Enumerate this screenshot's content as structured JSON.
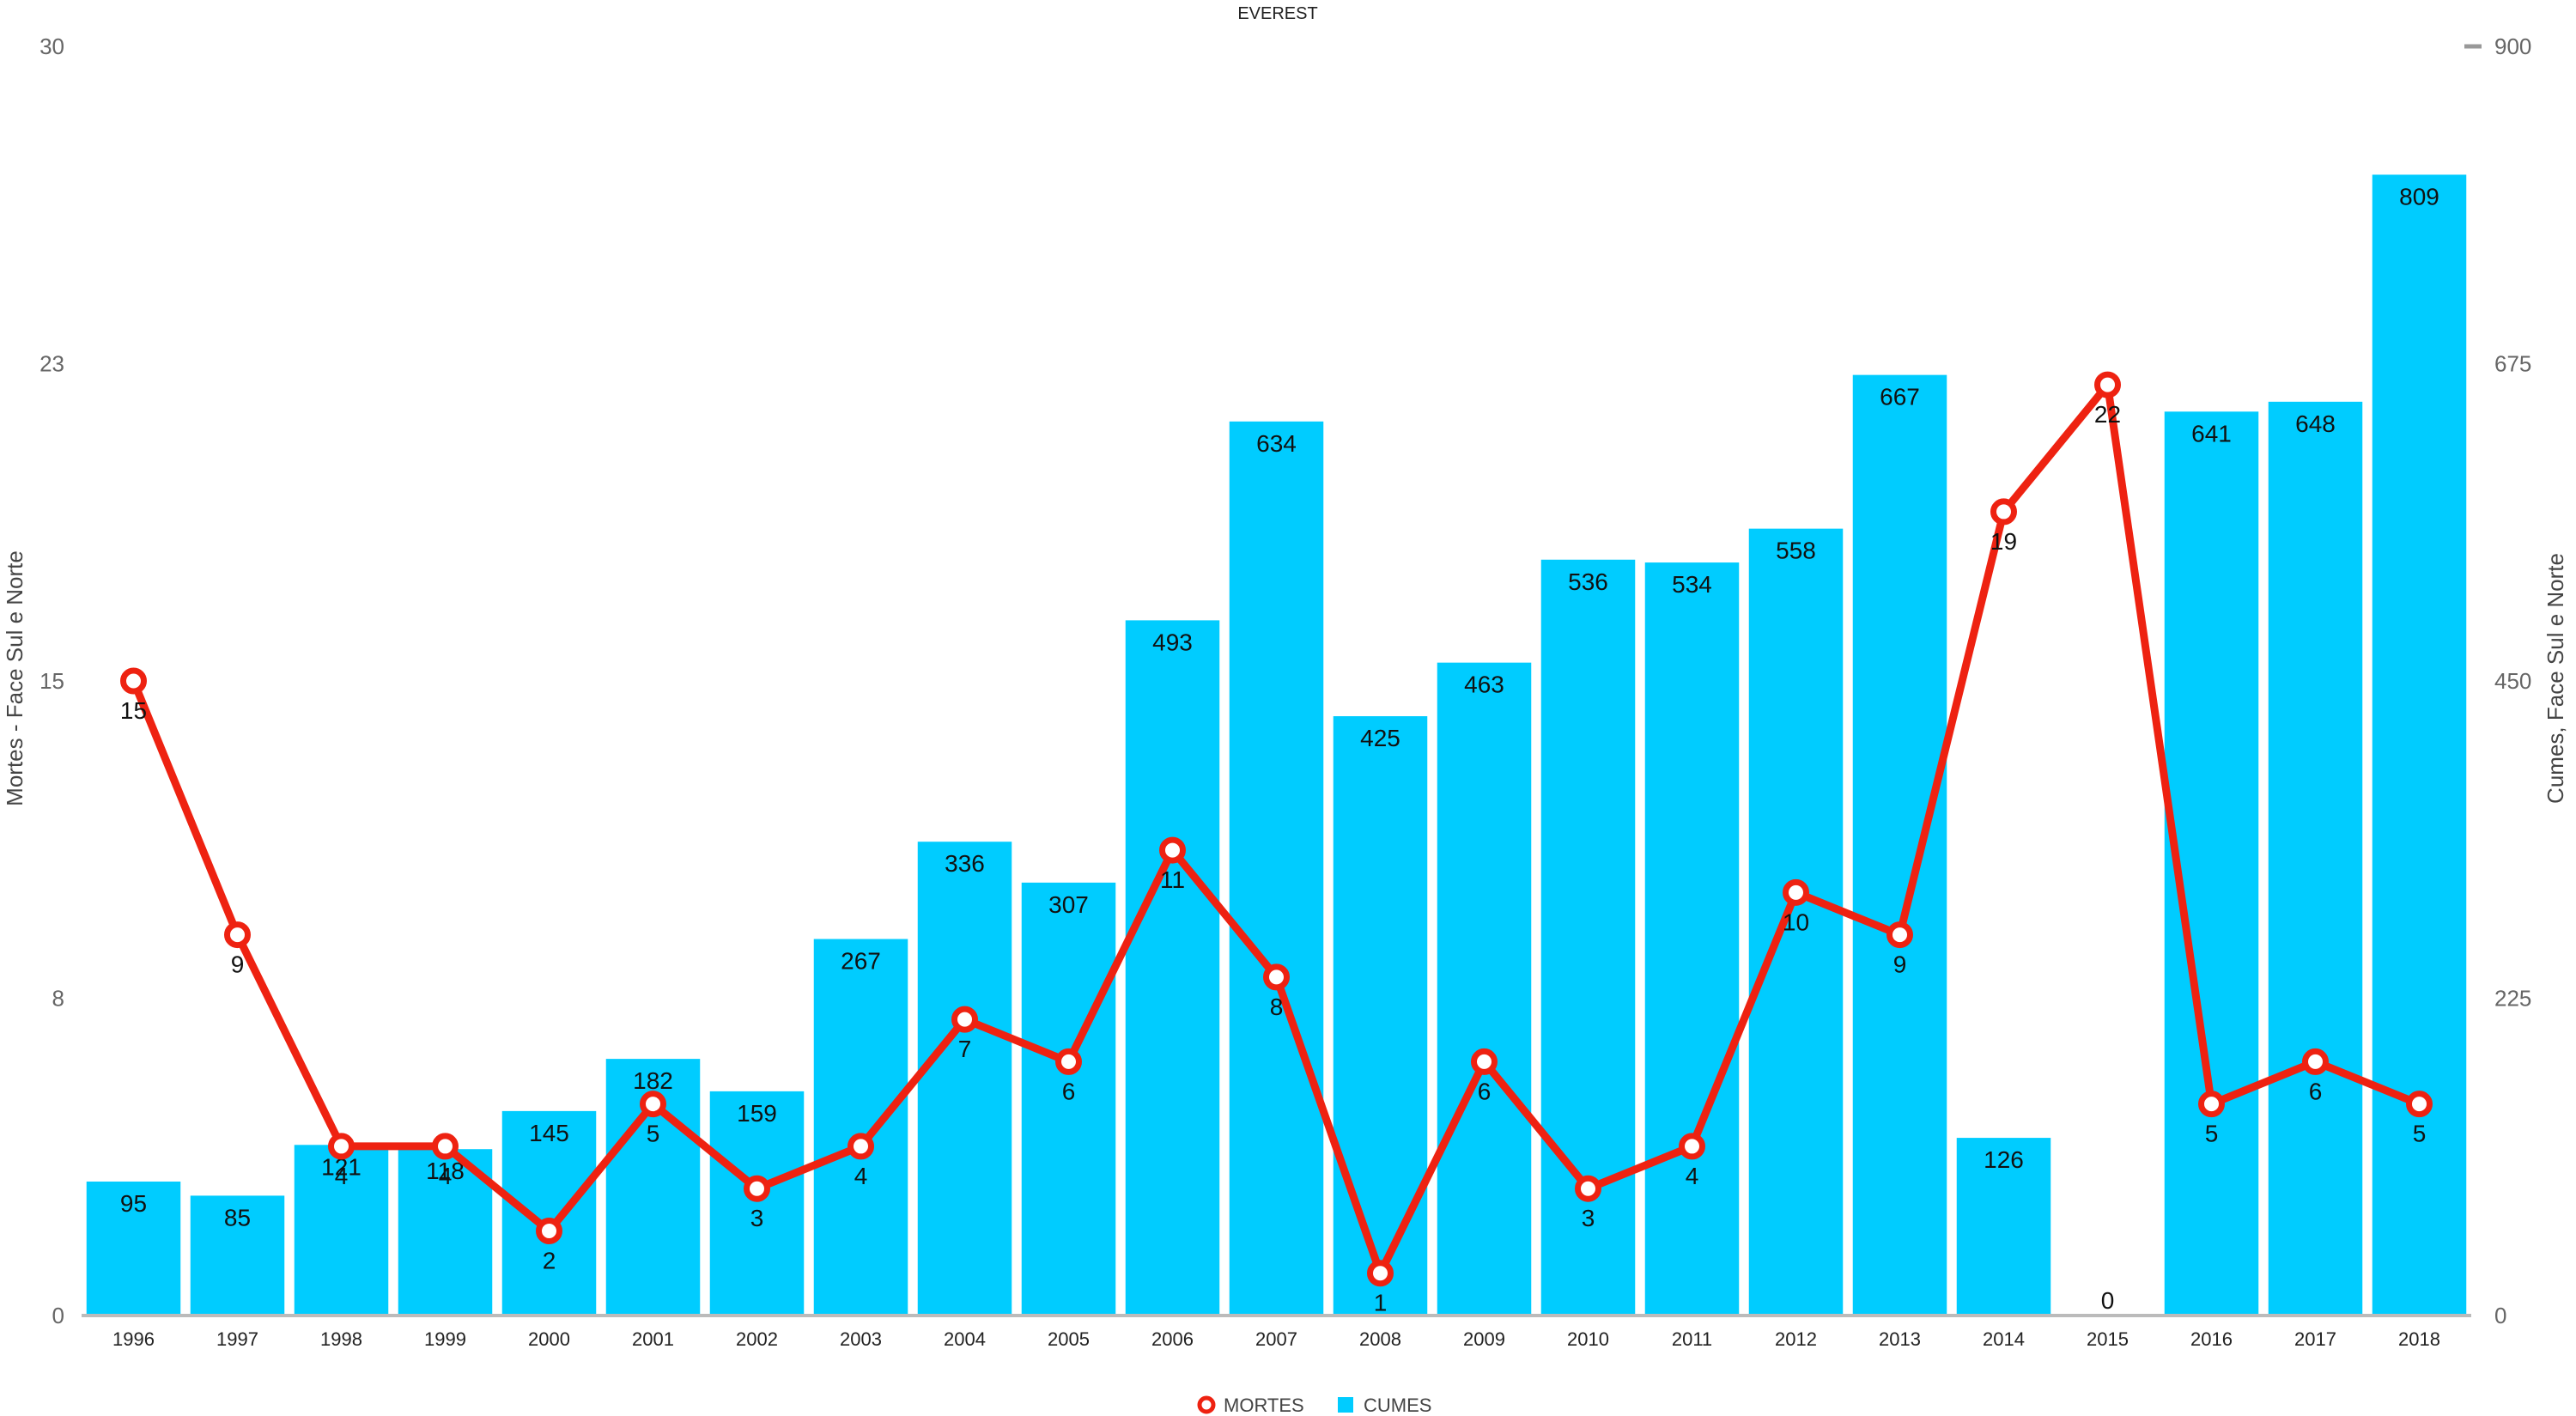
{
  "chart_data": {
    "type": "bar",
    "title": "EVEREST",
    "categories": [
      "1996",
      "1997",
      "1998",
      "1999",
      "2000",
      "2001",
      "2002",
      "2003",
      "2004",
      "2005",
      "2006",
      "2007",
      "2008",
      "2009",
      "2010",
      "2011",
      "2012",
      "2013",
      "2014",
      "2015",
      "2016",
      "2017",
      "2018"
    ],
    "series": [
      {
        "name": "CUMES",
        "type": "bar",
        "axis": "right",
        "color": "#00CCFF",
        "values": [
          95,
          85,
          121,
          118,
          145,
          182,
          159,
          267,
          336,
          307,
          493,
          634,
          425,
          463,
          536,
          534,
          558,
          667,
          126,
          0,
          641,
          648,
          809
        ]
      },
      {
        "name": "MORTES",
        "type": "line",
        "axis": "left",
        "color": "#EE2211",
        "values": [
          15,
          9,
          4,
          4,
          2,
          5,
          3,
          4,
          7,
          6,
          11,
          8,
          1,
          6,
          3,
          4,
          10,
          9,
          19,
          22,
          5,
          6,
          5
        ]
      }
    ],
    "ylabel_left": "Mortes - Face Sul e Norte",
    "ylabel_right": "Cumes, Face Sul e Norte",
    "ylim_left": [
      0,
      30
    ],
    "ylim_right": [
      0,
      900
    ],
    "yticks_left": [
      "0",
      "8",
      "15",
      "23",
      "30"
    ],
    "yticks_right": [
      "0",
      "225",
      "450",
      "675",
      "900"
    ],
    "grid": false,
    "legend": "bottom"
  }
}
